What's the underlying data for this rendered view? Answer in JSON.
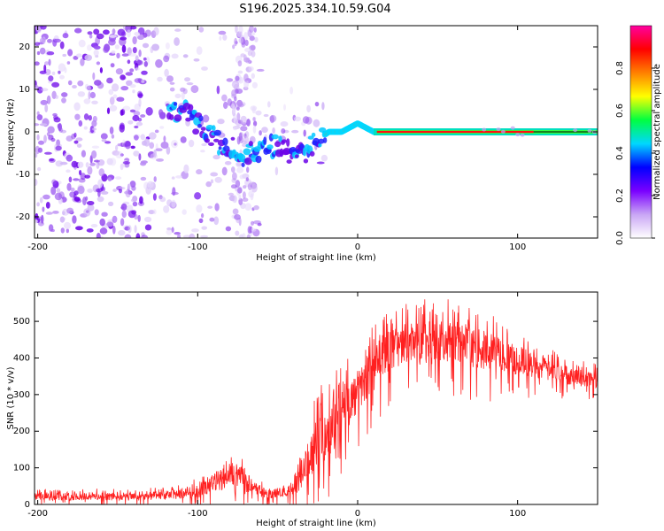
{
  "title": "S196.2025.334.10.59.G04",
  "chart_data": [
    {
      "type": "heatmap",
      "name": "spectrogram",
      "xlabel": "Height of straight line (km)",
      "ylabel": "Frequency (Hz)",
      "xlim": [
        -202,
        150
      ],
      "ylim": [
        -25,
        25
      ],
      "xticks": [
        -200,
        -100,
        0,
        100
      ],
      "yticks": [
        -20,
        -10,
        0,
        10,
        20
      ],
      "ridge": {
        "x": [
          -115,
          -108,
          -100,
          -92,
          -85,
          -78,
          -70,
          -62,
          -55,
          -48,
          -40,
          -32,
          -25,
          -18,
          -10,
          -5,
          0,
          5,
          10,
          15,
          30,
          60,
          100,
          150
        ],
        "freq": [
          4,
          5,
          2,
          -1,
          -3,
          -3,
          -6,
          -4,
          -3,
          -4,
          -5,
          -5,
          -2,
          0,
          0,
          1,
          2,
          1,
          0,
          0,
          0,
          0,
          0,
          0
        ]
      },
      "colorbar": {
        "label": "Normalized spectral amplitude",
        "range": [
          0,
          1
        ],
        "ticks": [
          "0.0",
          "0.2",
          "0.4",
          "0.6",
          "0.8"
        ],
        "colors": [
          "#ffffff",
          "#c9a6f5",
          "#7a00ff",
          "#0000ff",
          "#00d7ff",
          "#00ff40",
          "#ffff00",
          "#ff8000",
          "#ff0000",
          "#ff00a0"
        ]
      }
    },
    {
      "type": "line",
      "name": "snr",
      "xlabel": "Height of straight line (km)",
      "ylabel": "SNR (10 * v/v)",
      "xlim": [
        -202,
        150
      ],
      "ylim": [
        0,
        580
      ],
      "xticks": [
        -200,
        -100,
        0,
        100
      ],
      "yticks": [
        0,
        100,
        200,
        300,
        400,
        500
      ],
      "color": "#ff2020",
      "series": [
        {
          "name": "SNR",
          "x": [
            -202,
            -180,
            -160,
            -140,
            -120,
            -110,
            -100,
            -92,
            -85,
            -80,
            -76,
            -72,
            -68,
            -62,
            -55,
            -50,
            -45,
            -40,
            -37,
            -34,
            -31,
            -28,
            -25,
            -22,
            -18,
            -14,
            -10,
            -6,
            -2,
            2,
            6,
            10,
            15,
            20,
            25,
            30,
            40,
            50,
            60,
            70,
            80,
            90,
            100,
            110,
            120,
            130,
            140,
            150
          ],
          "value": [
            20,
            22,
            22,
            20,
            25,
            30,
            35,
            55,
            70,
            85,
            80,
            70,
            45,
            35,
            30,
            30,
            35,
            45,
            60,
            90,
            120,
            150,
            170,
            185,
            200,
            230,
            250,
            275,
            295,
            320,
            345,
            370,
            400,
            420,
            430,
            435,
            440,
            445,
            440,
            430,
            420,
            410,
            395,
            380,
            365,
            355,
            345,
            340
          ],
          "spread": [
            18,
            18,
            18,
            18,
            20,
            25,
            30,
            40,
            50,
            55,
            50,
            45,
            30,
            25,
            22,
            22,
            25,
            35,
            45,
            60,
            90,
            110,
            120,
            130,
            130,
            130,
            120,
            110,
            100,
            100,
            100,
            100,
            100,
            100,
            100,
            100,
            100,
            100,
            100,
            90,
            90,
            80,
            70,
            60,
            50,
            45,
            40,
            40
          ]
        }
      ]
    }
  ]
}
